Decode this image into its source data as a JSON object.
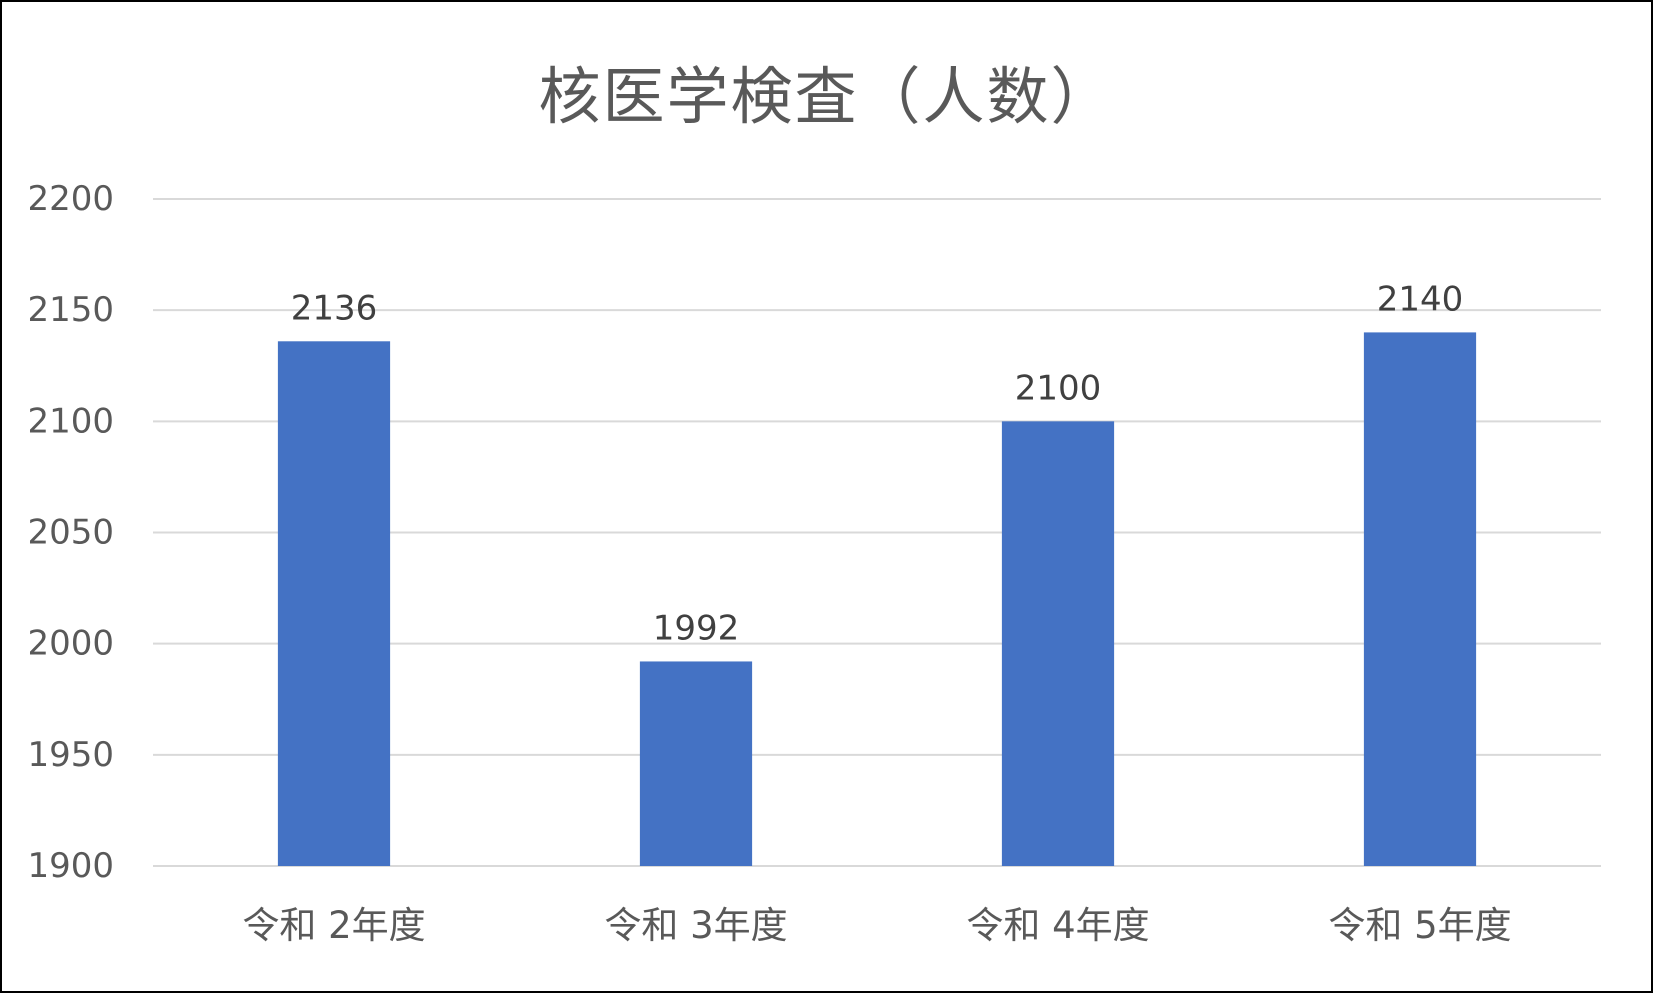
{
  "chart_data": {
    "type": "bar",
    "title": "核医学検査（人数）",
    "categories": [
      "令和 2年度",
      "令和 3年度",
      "令和 4年度",
      "令和 5年度"
    ],
    "series": [
      {
        "values": [
          2136,
          1992,
          2100,
          2140
        ],
        "color": "#4472C4"
      }
    ],
    "xlabel": "",
    "ylabel": "",
    "ylim": [
      1900,
      2200
    ],
    "yticks": [
      1900,
      1950,
      2000,
      2050,
      2100,
      2150,
      2200
    ],
    "grid": true,
    "data_labels": true,
    "legend": "none"
  }
}
